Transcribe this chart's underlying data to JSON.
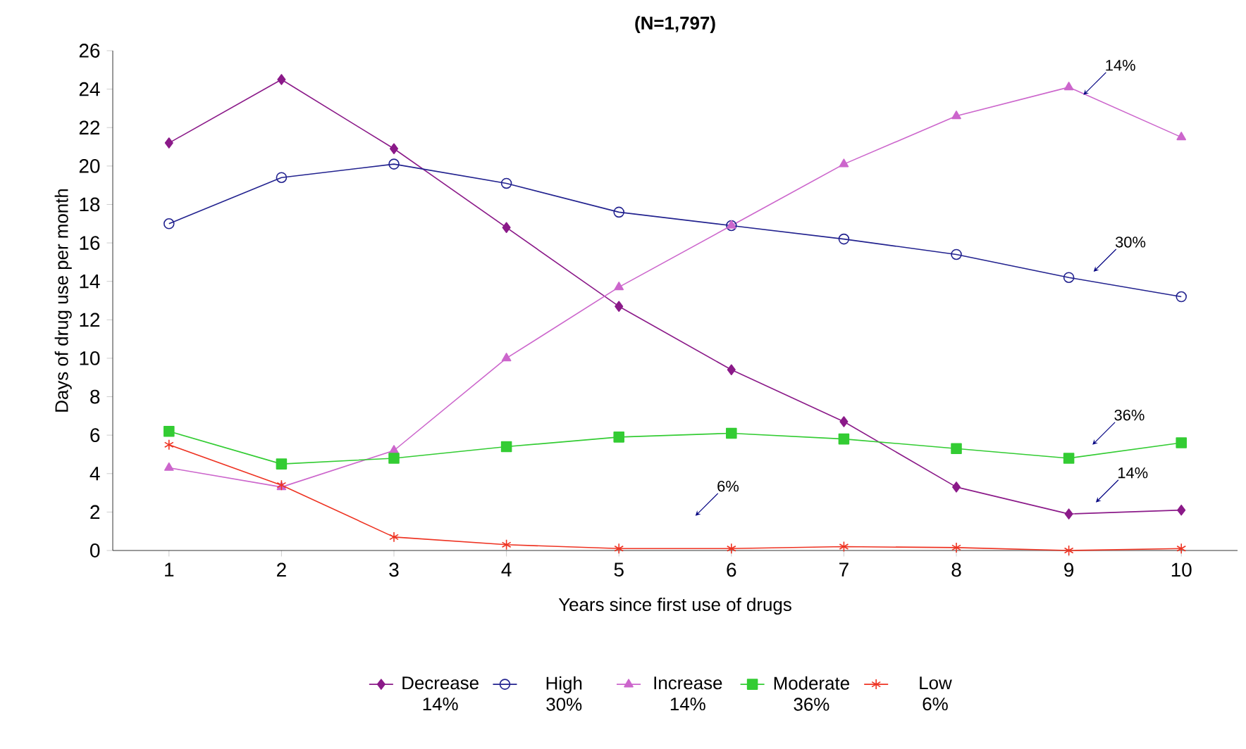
{
  "chart_data": {
    "type": "line",
    "title": "(N=1,797)",
    "xlabel": "Years since first use of drugs",
    "ylabel": "Days of drug use per month",
    "x": [
      1,
      2,
      3,
      4,
      5,
      6,
      7,
      8,
      9,
      10
    ],
    "xlim": [
      0.5,
      10.5
    ],
    "xticks": [
      1,
      2,
      3,
      4,
      5,
      6,
      7,
      8,
      9,
      10
    ],
    "ylim": [
      0,
      26
    ],
    "yticks": [
      0,
      2,
      4,
      6,
      8,
      10,
      12,
      14,
      16,
      18,
      20,
      22,
      24,
      26
    ],
    "grid": false,
    "legend": "bottom",
    "series": [
      {
        "name": "Decrease 14%",
        "color": "#8b1a89",
        "marker": "diamond",
        "values": [
          21.2,
          24.5,
          20.9,
          16.8,
          12.7,
          9.4,
          6.7,
          3.3,
          1.9,
          2.1
        ]
      },
      {
        "name": "High 30%",
        "color": "#22228f",
        "marker": "circle",
        "values": [
          17.0,
          19.4,
          20.1,
          19.1,
          17.6,
          16.9,
          16.2,
          15.4,
          14.2,
          13.2
        ]
      },
      {
        "name": "Increase 14%",
        "color": "#cc66cc",
        "marker": "triangle",
        "values": [
          4.3,
          3.3,
          5.2,
          10.0,
          13.7,
          16.9,
          20.1,
          22.6,
          24.1,
          21.5
        ]
      },
      {
        "name": "Moderate 36%",
        "color": "#33cc33",
        "marker": "square",
        "values": [
          6.2,
          4.5,
          4.8,
          5.4,
          5.9,
          6.1,
          5.8,
          5.3,
          4.8,
          5.6
        ]
      },
      {
        "name": "Low 6%",
        "color": "#ee3322",
        "marker": "cross",
        "values": [
          5.5,
          3.4,
          0.7,
          0.3,
          0.1,
          0.1,
          0.2,
          0.15,
          0.0,
          0.1
        ]
      }
    ],
    "annotations": [
      {
        "text": "14%",
        "x": 9.13,
        "y": 23.7
      },
      {
        "text": "30%",
        "x": 9.22,
        "y": 14.5
      },
      {
        "text": "36%",
        "x": 9.21,
        "y": 5.5
      },
      {
        "text": "14%",
        "x": 9.24,
        "y": 2.5
      },
      {
        "text": "6%",
        "x": 5.68,
        "y": 1.8
      }
    ]
  }
}
